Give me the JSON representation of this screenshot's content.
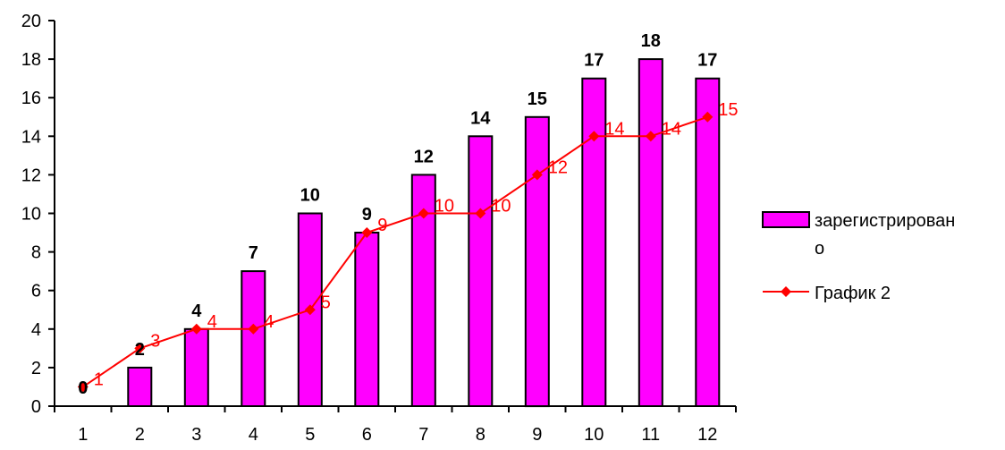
{
  "chart_data": {
    "type": "bar",
    "categories": [
      "1",
      "2",
      "3",
      "4",
      "5",
      "6",
      "7",
      "8",
      "9",
      "10",
      "11",
      "12"
    ],
    "ylim": [
      0,
      20
    ],
    "ytick_step": 2,
    "yticks": [
      "0",
      "2",
      "4",
      "6",
      "8",
      "10",
      "12",
      "14",
      "16",
      "18",
      "20"
    ],
    "grid": false,
    "legend_position": "right",
    "series": [
      {
        "name_line1": "зарегистрирован",
        "name_line2": "о",
        "type": "bar",
        "color": "#FF00FF",
        "values": [
          0,
          2,
          4,
          7,
          10,
          9,
          12,
          14,
          15,
          17,
          18,
          17
        ]
      },
      {
        "name": "График 2",
        "type": "line",
        "color": "#FF0000",
        "values": [
          1,
          3,
          4,
          4,
          5,
          9,
          10,
          10,
          12,
          14,
          14,
          15
        ]
      }
    ]
  }
}
